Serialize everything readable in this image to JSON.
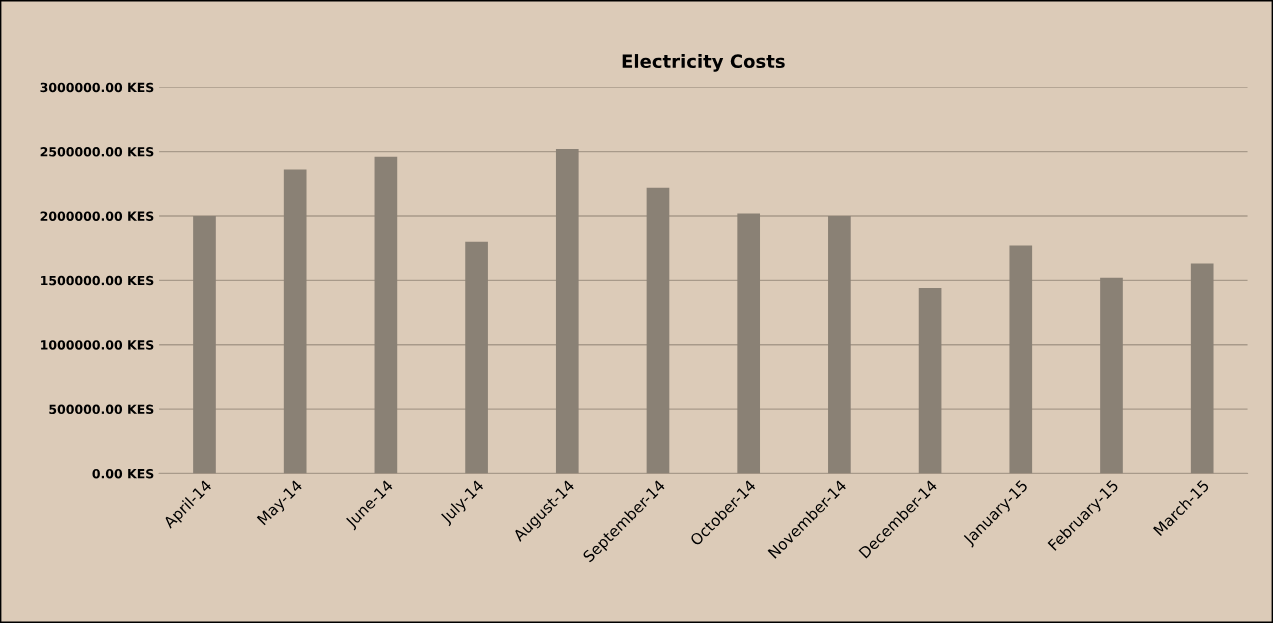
{
  "chart_data": {
    "type": "bar",
    "title": "Electricity Costs",
    "categories": [
      "April-14",
      "May-14",
      "June-14",
      "July-14",
      "August-14",
      "September-14",
      "October-14",
      "November-14",
      "December-14",
      "January-15",
      "February-15",
      "March-15"
    ],
    "values": [
      2000000,
      2360000,
      2460000,
      1800000,
      2520000,
      2220000,
      2020000,
      2000000,
      1440000,
      1770000,
      1520000,
      1630000
    ],
    "color": "#8a8175",
    "ylim": [
      0,
      3000000
    ],
    "yticks": [
      {
        "value": 0,
        "label": "0.00 KES"
      },
      {
        "value": 500000,
        "label": "500000.00 KES"
      },
      {
        "value": 1000000,
        "label": "1000000.00 KES"
      },
      {
        "value": 1500000,
        "label": "1500000.00 KES"
      },
      {
        "value": 2000000,
        "label": "2000000.00 KES"
      },
      {
        "value": 2500000,
        "label": "2500000.00 KES"
      },
      {
        "value": 3000000,
        "label": "3000000.00 KES"
      }
    ],
    "grid": "y",
    "legend": false
  }
}
